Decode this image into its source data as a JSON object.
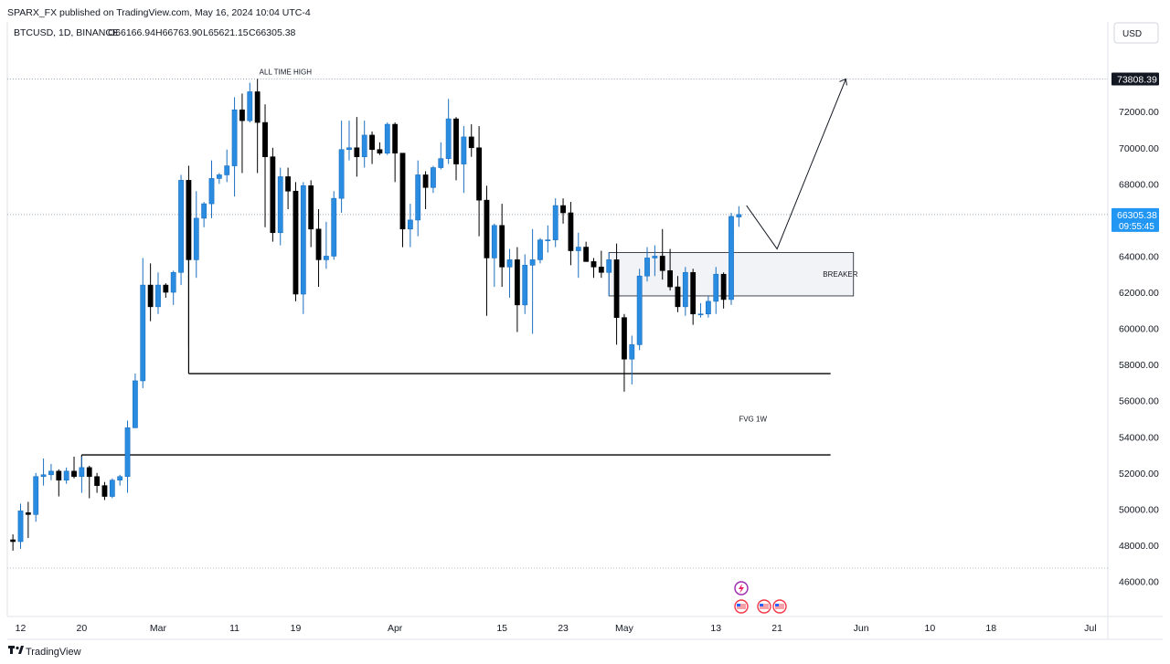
{
  "header": {
    "published": "SPARX_FX published on TradingView.com, May 16, 2024 10:04 UTC-4",
    "symbol": "BTCUSD, 1D, BINANCE",
    "open": "O66166.94",
    "high": "H66763.90",
    "low": "L65621.15",
    "close": "C66305.38"
  },
  "currency_button": "USD",
  "footer_brand": "TradingView",
  "colors": {
    "up": "#2a8ce0",
    "down": "#000000",
    "price_tag": "#2196f3",
    "ath_tag": "#131722",
    "grid_dotted": "#b7bdc6"
  },
  "chart_data": {
    "type": "candlestick",
    "title": "",
    "ylim": [
      44800,
      76300
    ],
    "y_ticks": [
      46000,
      48000,
      50000,
      52000,
      54000,
      56000,
      58000,
      60000,
      62000,
      64000,
      66000,
      68000,
      70000,
      72000
    ],
    "y_tick_labels": [
      "46000.00",
      "48000.00",
      "50000.00",
      "52000.00",
      "54000.00",
      "56000.00",
      "58000.00",
      "60000.00",
      "62000.00",
      "64000.00",
      "66000.00",
      "68000.00",
      "70000.00",
      "72000.00"
    ],
    "x_ticks": [
      "12",
      "20",
      "Mar",
      "11",
      "19",
      "Apr",
      "15",
      "23",
      "May",
      "13",
      "21",
      "Jun",
      "10",
      "18",
      "Jul"
    ],
    "x_tick_dates": [
      "2024-02-12",
      "2024-02-20",
      "2024-03-01",
      "2024-03-11",
      "2024-03-19",
      "2024-04-01",
      "2024-04-15",
      "2024-04-23",
      "2024-05-01",
      "2024-05-13",
      "2024-05-21",
      "2024-06-01",
      "2024-06-10",
      "2024-06-18",
      "2024-07-01"
    ],
    "candles": [
      {
        "date": "2024-02-11",
        "o": 48300,
        "h": 48600,
        "l": 47700,
        "c": 48200
      },
      {
        "date": "2024-02-12",
        "o": 48200,
        "h": 50300,
        "l": 47800,
        "c": 49900
      },
      {
        "date": "2024-02-13",
        "o": 49800,
        "h": 50400,
        "l": 48400,
        "c": 49700
      },
      {
        "date": "2024-02-14",
        "o": 49700,
        "h": 52000,
        "l": 49300,
        "c": 51800
      },
      {
        "date": "2024-02-15",
        "o": 51800,
        "h": 52800,
        "l": 51300,
        "c": 51900
      },
      {
        "date": "2024-02-16",
        "o": 51900,
        "h": 52500,
        "l": 51600,
        "c": 52100
      },
      {
        "date": "2024-02-17",
        "o": 52100,
        "h": 52200,
        "l": 50700,
        "c": 51600
      },
      {
        "date": "2024-02-18",
        "o": 51600,
        "h": 52300,
        "l": 51400,
        "c": 52100
      },
      {
        "date": "2024-02-19",
        "o": 52100,
        "h": 52900,
        "l": 51700,
        "c": 51800
      },
      {
        "date": "2024-02-20",
        "o": 51800,
        "h": 52900,
        "l": 50900,
        "c": 52300
      },
      {
        "date": "2024-02-21",
        "o": 52300,
        "h": 52400,
        "l": 50600,
        "c": 51800
      },
      {
        "date": "2024-02-22",
        "o": 51800,
        "h": 52000,
        "l": 50900,
        "c": 51300
      },
      {
        "date": "2024-02-23",
        "o": 51300,
        "h": 51500,
        "l": 50500,
        "c": 50700
      },
      {
        "date": "2024-02-24",
        "o": 50700,
        "h": 51700,
        "l": 50600,
        "c": 51600
      },
      {
        "date": "2024-02-25",
        "o": 51600,
        "h": 51900,
        "l": 51300,
        "c": 51800
      },
      {
        "date": "2024-02-26",
        "o": 51800,
        "h": 54900,
        "l": 50900,
        "c": 54500
      },
      {
        "date": "2024-02-27",
        "o": 54500,
        "h": 57500,
        "l": 54500,
        "c": 57100
      },
      {
        "date": "2024-02-28",
        "o": 57100,
        "h": 63900,
        "l": 56700,
        "c": 62400
      },
      {
        "date": "2024-02-29",
        "o": 62400,
        "h": 63600,
        "l": 60400,
        "c": 61200
      },
      {
        "date": "2024-03-01",
        "o": 61200,
        "h": 63100,
        "l": 60800,
        "c": 62400
      },
      {
        "date": "2024-03-02",
        "o": 62400,
        "h": 62500,
        "l": 61700,
        "c": 62000
      },
      {
        "date": "2024-03-03",
        "o": 62000,
        "h": 63200,
        "l": 61300,
        "c": 63100
      },
      {
        "date": "2024-03-04",
        "o": 63100,
        "h": 68500,
        "l": 62400,
        "c": 68200
      },
      {
        "date": "2024-03-05",
        "o": 68200,
        "h": 69000,
        "l": 59000,
        "c": 63800
      },
      {
        "date": "2024-03-06",
        "o": 63800,
        "h": 67600,
        "l": 62800,
        "c": 66100
      },
      {
        "date": "2024-03-07",
        "o": 66100,
        "h": 67000,
        "l": 65600,
        "c": 66900
      },
      {
        "date": "2024-03-08",
        "o": 66900,
        "h": 69300,
        "l": 66100,
        "c": 68300
      },
      {
        "date": "2024-03-09",
        "o": 68300,
        "h": 68600,
        "l": 68000,
        "c": 68500
      },
      {
        "date": "2024-03-10",
        "o": 68500,
        "h": 69900,
        "l": 68100,
        "c": 69000
      },
      {
        "date": "2024-03-11",
        "o": 69000,
        "h": 72800,
        "l": 67300,
        "c": 72100
      },
      {
        "date": "2024-03-12",
        "o": 72100,
        "h": 73000,
        "l": 68600,
        "c": 71500
      },
      {
        "date": "2024-03-13",
        "o": 71500,
        "h": 73600,
        "l": 71400,
        "c": 73100
      },
      {
        "date": "2024-03-14",
        "o": 73100,
        "h": 73808.39,
        "l": 68600,
        "c": 71400
      },
      {
        "date": "2024-03-15",
        "o": 71400,
        "h": 72400,
        "l": 65600,
        "c": 69500
      },
      {
        "date": "2024-03-16",
        "o": 69500,
        "h": 70000,
        "l": 64800,
        "c": 65300
      },
      {
        "date": "2024-03-17",
        "o": 65300,
        "h": 68900,
        "l": 64600,
        "c": 68400
      },
      {
        "date": "2024-03-18",
        "o": 68400,
        "h": 68900,
        "l": 66600,
        "c": 67600
      },
      {
        "date": "2024-03-19",
        "o": 67600,
        "h": 68100,
        "l": 61500,
        "c": 61900
      },
      {
        "date": "2024-03-20",
        "o": 61900,
        "h": 68100,
        "l": 60800,
        "c": 67900
      },
      {
        "date": "2024-03-21",
        "o": 67900,
        "h": 68200,
        "l": 64500,
        "c": 65500
      },
      {
        "date": "2024-03-22",
        "o": 65500,
        "h": 66600,
        "l": 62300,
        "c": 63800
      },
      {
        "date": "2024-03-23",
        "o": 63800,
        "h": 65900,
        "l": 63300,
        "c": 64000
      },
      {
        "date": "2024-03-24",
        "o": 64000,
        "h": 67600,
        "l": 63800,
        "c": 67200
      },
      {
        "date": "2024-03-25",
        "o": 67200,
        "h": 71500,
        "l": 66400,
        "c": 69900
      },
      {
        "date": "2024-03-26",
        "o": 69900,
        "h": 71500,
        "l": 69300,
        "c": 70000
      },
      {
        "date": "2024-03-27",
        "o": 70000,
        "h": 71700,
        "l": 68400,
        "c": 69500
      },
      {
        "date": "2024-03-28",
        "o": 69500,
        "h": 71500,
        "l": 68900,
        "c": 70700
      },
      {
        "date": "2024-03-29",
        "o": 70700,
        "h": 70900,
        "l": 69100,
        "c": 69900
      },
      {
        "date": "2024-03-30",
        "o": 69900,
        "h": 70300,
        "l": 69600,
        "c": 69700
      },
      {
        "date": "2024-03-31",
        "o": 69700,
        "h": 71400,
        "l": 69600,
        "c": 71300
      },
      {
        "date": "2024-04-01",
        "o": 71300,
        "h": 71400,
        "l": 68100,
        "c": 69700
      },
      {
        "date": "2024-04-02",
        "o": 69700,
        "h": 69700,
        "l": 64500,
        "c": 65500
      },
      {
        "date": "2024-04-03",
        "o": 65500,
        "h": 66900,
        "l": 64500,
        "c": 66000
      },
      {
        "date": "2024-04-04",
        "o": 66000,
        "h": 69300,
        "l": 65100,
        "c": 68500
      },
      {
        "date": "2024-04-05",
        "o": 68500,
        "h": 68700,
        "l": 66600,
        "c": 67800
      },
      {
        "date": "2024-04-06",
        "o": 67800,
        "h": 69000,
        "l": 67500,
        "c": 68900
      },
      {
        "date": "2024-04-07",
        "o": 68900,
        "h": 70300,
        "l": 68800,
        "c": 69400
      },
      {
        "date": "2024-04-08",
        "o": 69400,
        "h": 72700,
        "l": 69100,
        "c": 71600
      },
      {
        "date": "2024-04-09",
        "o": 71600,
        "h": 71700,
        "l": 68200,
        "c": 69100
      },
      {
        "date": "2024-04-10",
        "o": 69100,
        "h": 71200,
        "l": 67500,
        "c": 70600
      },
      {
        "date": "2024-04-11",
        "o": 70600,
        "h": 71300,
        "l": 69500,
        "c": 70000
      },
      {
        "date": "2024-04-12",
        "o": 70000,
        "h": 71200,
        "l": 65100,
        "c": 67100
      },
      {
        "date": "2024-04-13",
        "o": 67100,
        "h": 67900,
        "l": 60700,
        "c": 63900
      },
      {
        "date": "2024-04-14",
        "o": 63900,
        "h": 65800,
        "l": 62300,
        "c": 65700
      },
      {
        "date": "2024-04-15",
        "o": 65700,
        "h": 66900,
        "l": 62300,
        "c": 63400
      },
      {
        "date": "2024-04-16",
        "o": 63400,
        "h": 64400,
        "l": 61700,
        "c": 63800
      },
      {
        "date": "2024-04-17",
        "o": 63800,
        "h": 64500,
        "l": 59800,
        "c": 61300
      },
      {
        "date": "2024-04-18",
        "o": 61300,
        "h": 64100,
        "l": 60800,
        "c": 63500
      },
      {
        "date": "2024-04-19",
        "o": 63500,
        "h": 65500,
        "l": 59700,
        "c": 63800
      },
      {
        "date": "2024-04-20",
        "o": 63800,
        "h": 65000,
        "l": 63600,
        "c": 64900
      },
      {
        "date": "2024-04-21",
        "o": 64900,
        "h": 65700,
        "l": 64200,
        "c": 64900
      },
      {
        "date": "2024-04-22",
        "o": 64900,
        "h": 67200,
        "l": 64500,
        "c": 66800
      },
      {
        "date": "2024-04-23",
        "o": 66800,
        "h": 67200,
        "l": 65800,
        "c": 66400
      },
      {
        "date": "2024-04-24",
        "o": 66400,
        "h": 67000,
        "l": 63500,
        "c": 64300
      },
      {
        "date": "2024-04-25",
        "o": 64300,
        "h": 65300,
        "l": 62800,
        "c": 64500
      },
      {
        "date": "2024-04-26",
        "o": 64500,
        "h": 64800,
        "l": 63700,
        "c": 63700
      },
      {
        "date": "2024-04-27",
        "o": 63700,
        "h": 63900,
        "l": 62800,
        "c": 63400
      },
      {
        "date": "2024-04-28",
        "o": 63400,
        "h": 64300,
        "l": 62800,
        "c": 63100
      },
      {
        "date": "2024-04-29",
        "o": 63100,
        "h": 64200,
        "l": 61800,
        "c": 63800
      },
      {
        "date": "2024-04-30",
        "o": 63800,
        "h": 64700,
        "l": 59100,
        "c": 60600
      },
      {
        "date": "2024-05-01",
        "o": 60600,
        "h": 60800,
        "l": 56500,
        "c": 58300
      },
      {
        "date": "2024-05-02",
        "o": 58300,
        "h": 59600,
        "l": 56900,
        "c": 59100
      },
      {
        "date": "2024-05-03",
        "o": 59100,
        "h": 63300,
        "l": 58800,
        "c": 62900
      },
      {
        "date": "2024-05-04",
        "o": 62900,
        "h": 64500,
        "l": 62600,
        "c": 63900
      },
      {
        "date": "2024-05-05",
        "o": 63900,
        "h": 64600,
        "l": 62900,
        "c": 64000
      },
      {
        "date": "2024-05-06",
        "o": 64000,
        "h": 65500,
        "l": 62700,
        "c": 63200
      },
      {
        "date": "2024-05-07",
        "o": 63200,
        "h": 64400,
        "l": 62100,
        "c": 62300
      },
      {
        "date": "2024-05-08",
        "o": 62300,
        "h": 62900,
        "l": 60900,
        "c": 61200
      },
      {
        "date": "2024-05-09",
        "o": 61200,
        "h": 63400,
        "l": 60700,
        "c": 63100
      },
      {
        "date": "2024-05-10",
        "o": 63100,
        "h": 63300,
        "l": 60200,
        "c": 60800
      },
      {
        "date": "2024-05-11",
        "o": 60800,
        "h": 61400,
        "l": 60600,
        "c": 60800
      },
      {
        "date": "2024-05-12",
        "o": 60800,
        "h": 61800,
        "l": 60600,
        "c": 61500
      },
      {
        "date": "2024-05-13",
        "o": 61500,
        "h": 63400,
        "l": 60800,
        "c": 63000
      },
      {
        "date": "2024-05-14",
        "o": 63000,
        "h": 63100,
        "l": 61100,
        "c": 61600
      },
      {
        "date": "2024-05-15",
        "o": 61600,
        "h": 66400,
        "l": 61300,
        "c": 66200
      },
      {
        "date": "2024-05-16",
        "o": 66166.94,
        "h": 66763.9,
        "l": 65621.15,
        "c": 66305.38
      }
    ],
    "horizontal_levels": [
      {
        "name": "ATH line",
        "value": 73808.39,
        "from": "2024-03-14",
        "style": "dotted"
      },
      {
        "name": "current price line",
        "value": 66305.38,
        "style": "dotted"
      },
      {
        "name": "support",
        "value": 57500,
        "from": "2024-03-05",
        "to": "2024-05-28",
        "style": "solid"
      },
      {
        "name": "fvg level",
        "value": 53000,
        "from": "2024-02-20",
        "to": "2024-05-28",
        "style": "solid"
      }
    ],
    "zones": [
      {
        "label": "BREAKER",
        "from": "2024-04-29",
        "to": "2024-05-31",
        "y_low": 61800,
        "y_high": 64200
      }
    ],
    "projection_path": [
      {
        "date": "2024-05-17",
        "value": 66800
      },
      {
        "date": "2024-05-21",
        "value": 64400
      },
      {
        "date": "2024-05-30",
        "value": 73808.39
      }
    ],
    "annotations": {
      "ath_label": "ALL TIME HIGH",
      "breaker_label": "BREAKER",
      "fvg_label": "FVG 1W"
    },
    "price_tags": {
      "ath": "73808.39",
      "current": "66305.38",
      "countdown": "09:55:45"
    },
    "grid": false
  }
}
